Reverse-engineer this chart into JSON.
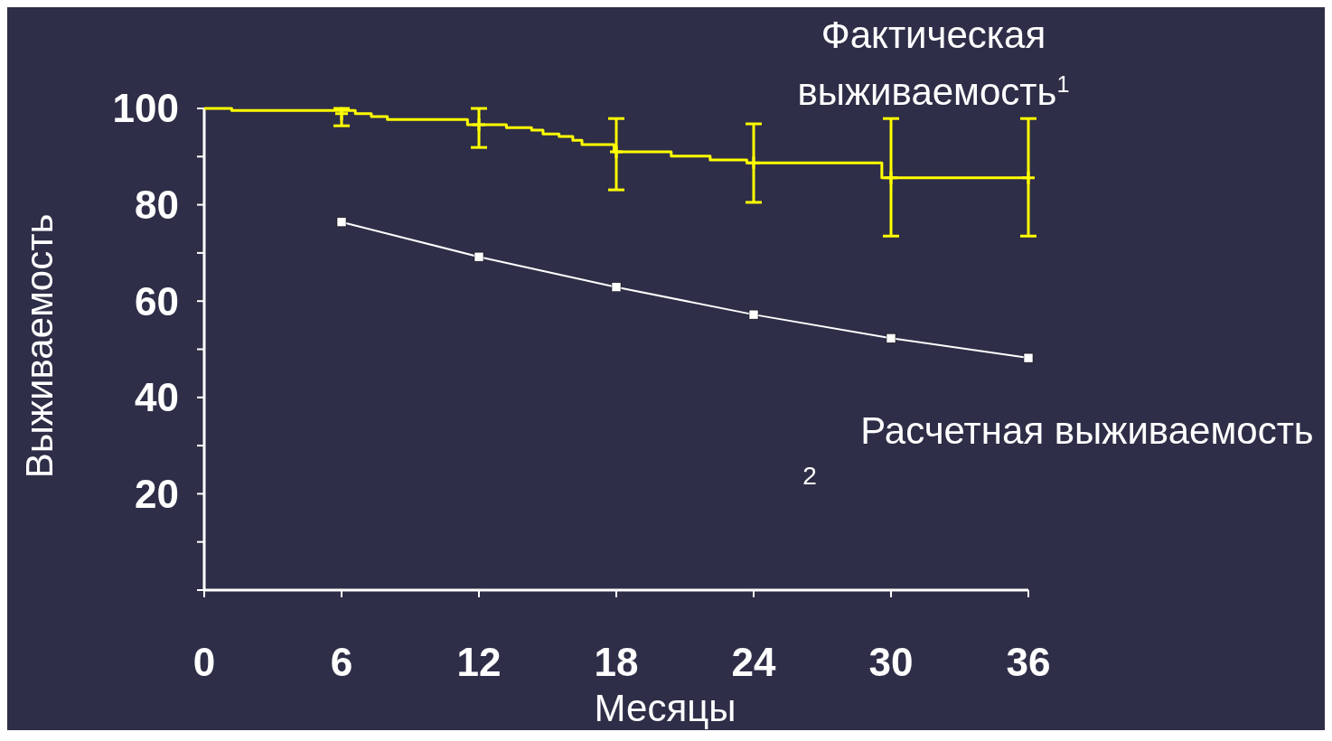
{
  "chart_data": {
    "type": "line",
    "xlabel": "Месяцы",
    "ylabel": "Выживаемость",
    "xlim": [
      0,
      36
    ],
    "xticks": [
      0,
      6,
      12,
      18,
      24,
      30,
      36
    ],
    "ylim": [
      0,
      100
    ],
    "yticks": [
      {
        "value": 0,
        "label": null
      },
      {
        "value": 10,
        "label": null
      },
      20,
      {
        "value": 30,
        "label": null
      },
      40,
      {
        "value": 50,
        "label": null
      },
      60,
      {
        "value": 70,
        "label": null
      },
      80,
      {
        "value": 90,
        "label": null
      },
      100
    ],
    "grid": false,
    "series": [
      {
        "type": "step",
        "color": "#ffff00",
        "marker": "none",
        "x": [
          0,
          1.2,
          6.6,
          7.3,
          8.0,
          11.5,
          13.2,
          14.3,
          14.8,
          15.5,
          16.1,
          16.5,
          17.9,
          20.4,
          22.1,
          23.7,
          29.6,
          36
        ],
        "values": [
          100,
          99.6,
          98.9,
          98.3,
          97.7,
          96.6,
          96.0,
          95.5,
          94.7,
          94.2,
          93.4,
          92.5,
          91.0,
          90.1,
          89.3,
          88.7,
          85.6,
          85.6
        ]
      },
      {
        "type": "scatter",
        "color": "#ffff00",
        "marker": "cross",
        "x": [
          6,
          12,
          18,
          24,
          30,
          36
        ],
        "values": [
          98.9,
          96.6,
          91.0,
          88.7,
          85.6,
          85.6
        ],
        "errors": [
          [
            96.4,
            100
          ],
          [
            91.9,
            100
          ],
          [
            83.1,
            97.9
          ],
          [
            80.5,
            96.8
          ],
          [
            73.5,
            97.9
          ],
          [
            73.5,
            97.9
          ]
        ]
      },
      {
        "type": "line",
        "color": "#ffffff",
        "marker": "square",
        "x": [
          6,
          12,
          18,
          24,
          30,
          36
        ],
        "values": [
          76.4,
          69.2,
          62.9,
          57.2,
          52.3,
          48.2
        ]
      }
    ],
    "annotations": [
      "Фактическая выживаемость$^{1}$",
      "Расчетная выживаемость",
      "2"
    ]
  }
}
